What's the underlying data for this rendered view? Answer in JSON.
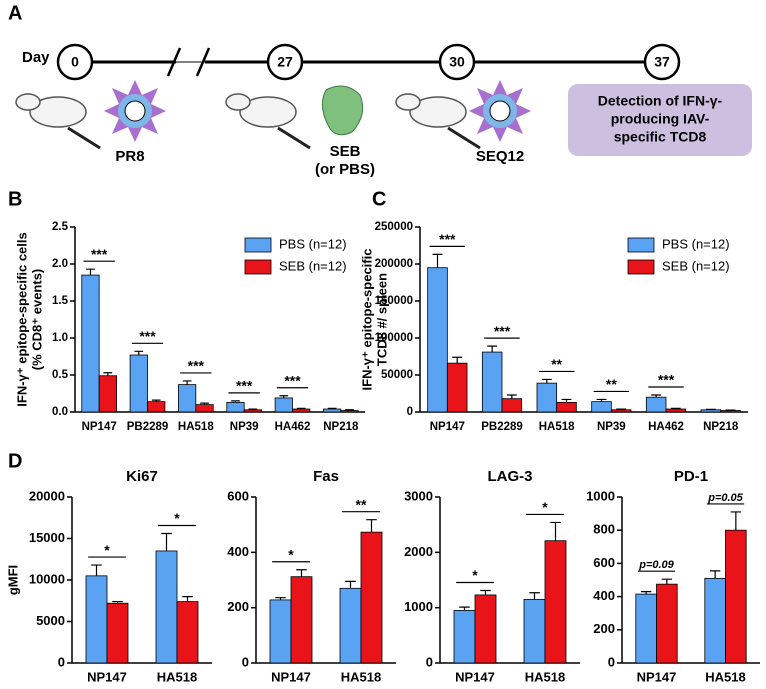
{
  "panels": [
    "A",
    "B",
    "C",
    "D"
  ],
  "timeline": {
    "day_label": "Day",
    "days": [
      0,
      27,
      30,
      37
    ],
    "agents": [
      "PR8",
      "SEB",
      "(or PBS)",
      "SEQ12"
    ],
    "box": [
      "Detection of IFN-γ-",
      "producing IAV-",
      "specific TCD8"
    ]
  },
  "chart_data": [
    {
      "type": "bar",
      "ylabel": [
        "IFN-γ⁺ epitope-specific cells",
        "(% CD8⁺ events)"
      ],
      "categories": [
        "NP147",
        "PB2289",
        "HA518",
        "NP39",
        "HA462",
        "NP218"
      ],
      "series": [
        {
          "name": "PBS (n=12)",
          "color": "#5aa2f2",
          "values": [
            1.85,
            0.77,
            0.37,
            0.13,
            0.19,
            0.04
          ],
          "errors": [
            0.08,
            0.05,
            0.05,
            0.02,
            0.03,
            0.01
          ]
        },
        {
          "name": "SEB (n=12)",
          "color": "#e8141a",
          "values": [
            0.49,
            0.14,
            0.1,
            0.03,
            0.04,
            0.02
          ],
          "errors": [
            0.04,
            0.02,
            0.02,
            0.01,
            0.01,
            0.01
          ]
        }
      ],
      "annotations": [
        "***",
        "***",
        "***",
        "***",
        "***",
        null
      ],
      "ylim": [
        0,
        2.5
      ],
      "yticks": [
        {
          "value": 0,
          "label": "0.0"
        },
        0.5,
        {
          "value": 1,
          "label": "1.0"
        },
        1.5,
        {
          "value": 2,
          "label": "2.0"
        },
        2.5
      ],
      "legend": "upper right"
    },
    {
      "type": "bar",
      "ylabel": [
        "IFN-γ⁺ epitope-specific",
        "TCD8 #/ spleen"
      ],
      "categories": [
        "NP147",
        "PB2289",
        "HA518",
        "NP39",
        "HA462",
        "NP218"
      ],
      "series": [
        {
          "name": "PBS (n=12)",
          "color": "#5aa2f2",
          "values": [
            195000,
            81000,
            39000,
            14000,
            20000,
            3000
          ],
          "errors": [
            18000,
            8000,
            5000,
            3000,
            3000,
            500
          ]
        },
        {
          "name": "SEB (n=12)",
          "color": "#e8141a",
          "values": [
            66000,
            18000,
            13000,
            3000,
            4000,
            2000
          ],
          "errors": [
            8000,
            5000,
            4000,
            1000,
            1000,
            500
          ]
        }
      ],
      "annotations": [
        "***",
        "***",
        "**",
        "**",
        "***",
        null
      ],
      "ylim": [
        0,
        250000
      ],
      "yticks": [
        0,
        50000,
        100000,
        150000,
        200000,
        250000
      ],
      "legend": "upper right"
    },
    {
      "type": "bar",
      "title": "Ki67",
      "ylabel": [
        "gMFI"
      ],
      "categories": [
        "NP147",
        "HA518"
      ],
      "series": [
        {
          "color": "#5aa2f2",
          "values": [
            10500,
            13500
          ],
          "errors": [
            1300,
            2100
          ]
        },
        {
          "color": "#e8141a",
          "values": [
            7200,
            7400
          ],
          "errors": [
            200,
            600
          ]
        }
      ],
      "annotations": [
        "*",
        "*"
      ],
      "ylim": [
        0,
        20000
      ],
      "yticks": [
        0,
        5000,
        10000,
        15000,
        20000
      ]
    },
    {
      "type": "bar",
      "title": "Fas",
      "categories": [
        "NP147",
        "HA518"
      ],
      "series": [
        {
          "color": "#5aa2f2",
          "values": [
            228,
            270
          ],
          "errors": [
            8,
            25
          ]
        },
        {
          "color": "#e8141a",
          "values": [
            312,
            473
          ],
          "errors": [
            25,
            45
          ]
        }
      ],
      "annotations": [
        "*",
        "**"
      ],
      "ylim": [
        0,
        600
      ],
      "yticks": [
        0,
        200,
        400,
        600
      ]
    },
    {
      "type": "bar",
      "title": "LAG-3",
      "categories": [
        "NP147",
        "HA518"
      ],
      "series": [
        {
          "color": "#5aa2f2",
          "values": [
            950,
            1150
          ],
          "errors": [
            60,
            120
          ]
        },
        {
          "color": "#e8141a",
          "values": [
            1230,
            2210
          ],
          "errors": [
            80,
            330
          ]
        }
      ],
      "annotations": [
        "*",
        "*"
      ],
      "ylim": [
        0,
        3000
      ],
      "yticks": [
        0,
        1000,
        2000,
        3000
      ]
    },
    {
      "type": "bar",
      "title": "PD-1",
      "categories": [
        "NP147",
        "HA518"
      ],
      "series": [
        {
          "color": "#5aa2f2",
          "values": [
            415,
            510
          ],
          "errors": [
            15,
            45
          ]
        },
        {
          "color": "#e8141a",
          "values": [
            475,
            800
          ],
          "errors": [
            30,
            110
          ]
        }
      ],
      "annotations": [
        "p=0.09",
        "p=0.05"
      ],
      "ylim": [
        0,
        1000
      ],
      "yticks": [
        0,
        200,
        400,
        600,
        800,
        1000
      ]
    }
  ]
}
